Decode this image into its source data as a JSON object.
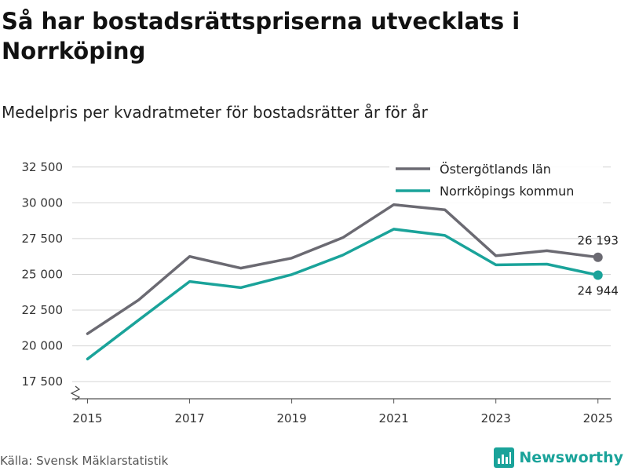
{
  "chart_data": {
    "type": "line",
    "title": "Så har bostadsrättspriserna utvecklats i Norrköping",
    "subtitle": "Medelpris per kvadratmeter för bostadsrätter år för år",
    "x": [
      2015,
      2016,
      2017,
      2018,
      2019,
      2020,
      2021,
      2022,
      2023,
      2024,
      2025
    ],
    "x_tick_labels": [
      "2015",
      "2017",
      "2019",
      "2021",
      "2023",
      "2025"
    ],
    "x_ticks": [
      2015,
      2017,
      2019,
      2021,
      2023,
      2025
    ],
    "y_tick_labels": [
      "17 500",
      "20 000",
      "22 500",
      "25 000",
      "27 500",
      "30 000",
      "32 500"
    ],
    "y_ticks": [
      17500,
      20000,
      22500,
      25000,
      27500,
      30000,
      32500
    ],
    "ylim": [
      16300,
      33200
    ],
    "xlim": [
      2014.7,
      2025.25
    ],
    "series": [
      {
        "name": "Östergötlands län",
        "color": "#6b6a72",
        "values": [
          20850,
          23200,
          26250,
          25430,
          26130,
          27560,
          29870,
          29510,
          26300,
          26650,
          26193
        ],
        "end_label": "26 193"
      },
      {
        "name": "Norrköpings kommun",
        "color": "#1aa39a",
        "values": [
          19080,
          21800,
          24500,
          24070,
          24980,
          26340,
          28160,
          27720,
          25660,
          25710,
          24944
        ],
        "end_label": "24 944"
      }
    ],
    "legend_position": "top-right",
    "grid": "horizontal",
    "axis_break": true
  },
  "footer": {
    "source": "Källa: Svensk Mäklarstatistik",
    "brand": "Newsworthy",
    "brand_color": "#1aa39a"
  }
}
